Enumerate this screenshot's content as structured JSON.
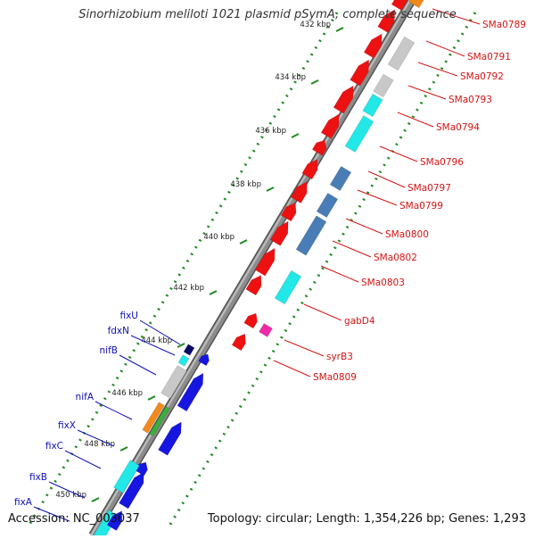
{
  "title": "Sinorhizobium meliloti 1021 plasmid pSymA, complete sequence",
  "footer": {
    "accession": "Accession: NC_003037",
    "summary": "Topology: circular; Length: 1,354,226 bp; Genes: 1,293"
  },
  "colors": {
    "backbone": "#8c8c8c",
    "tick_dots": "#1e8a1e",
    "right_labels": "#d41414",
    "left_labels": "#1010b8",
    "red_gene": "#ee1111",
    "gray_gene": "#c8c8c8",
    "cyan_gene": "#22e8e8",
    "steelblue_gene": "#4a7db5",
    "magenta_gene": "#ee2aa8",
    "blue_gene": "#1616e0",
    "navy_gene": "#0a0a6a",
    "orange_gene": "#f08a1a",
    "green_gene": "#3ab03a"
  },
  "scale_ticks": [
    {
      "label": "432 kbp",
      "kbp": 432
    },
    {
      "label": "434 kbp",
      "kbp": 434
    },
    {
      "label": "436 kbp",
      "kbp": 436
    },
    {
      "label": "438 kbp",
      "kbp": 438
    },
    {
      "label": "440 kbp",
      "kbp": 440
    },
    {
      "label": "442 kbp",
      "kbp": 442
    },
    {
      "label": "444 kbp",
      "kbp": 444
    },
    {
      "label": "446 kbp",
      "kbp": 446
    },
    {
      "label": "448 kbp",
      "kbp": 448
    },
    {
      "label": "450 kbp",
      "kbp": 450
    }
  ],
  "right_labels": [
    "SMa0789",
    "SMa0791",
    "SMa0792",
    "SMa0793",
    "SMa0794",
    "SMa0796",
    "SMa0797",
    "SMa0799",
    "SMa0800",
    "SMa0802",
    "SMa0803",
    "gabD4",
    "syrB3",
    "SMa0809"
  ],
  "left_labels": [
    "fixU",
    "fdxN",
    "nifB",
    "nifA",
    "fixX",
    "fixC",
    "fixB",
    "fixA"
  ]
}
